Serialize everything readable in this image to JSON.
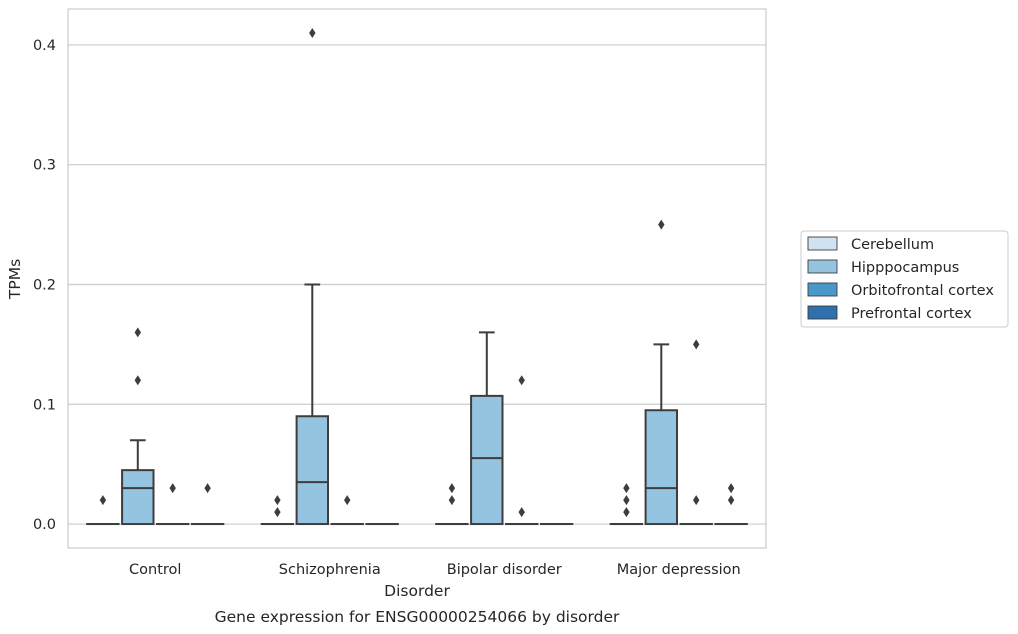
{
  "chart_data": {
    "type": "box",
    "xlabel": "Disorder",
    "ylabel": "TPMs",
    "caption": "Gene expression for ENSG00000254066 by disorder",
    "ylim": [
      -0.02,
      0.43
    ],
    "yticks": [
      "0.0",
      "0.1",
      "0.2",
      "0.3",
      "0.4"
    ],
    "ytick_values": [
      0.0,
      0.1,
      0.2,
      0.3,
      0.4
    ],
    "grid": "horizontal",
    "legend_position": "right",
    "categories": [
      "Control",
      "Schizophrenia",
      "Bipolar disorder",
      "Major depression"
    ],
    "series": [
      {
        "name": "Cerebellum",
        "color": "#d0e1f2",
        "boxes": [
          {
            "min": 0,
            "q1": 0,
            "median": 0,
            "q3": 0,
            "max": 0,
            "outliers": [
              0.02
            ]
          },
          {
            "min": 0,
            "q1": 0,
            "median": 0,
            "q3": 0,
            "max": 0,
            "outliers": [
              0.01,
              0.02
            ]
          },
          {
            "min": 0,
            "q1": 0,
            "median": 0,
            "q3": 0,
            "max": 0,
            "outliers": [
              0.02,
              0.03
            ]
          },
          {
            "min": 0,
            "q1": 0,
            "median": 0,
            "q3": 0,
            "max": 0,
            "outliers": [
              0.01,
              0.02,
              0.03
            ]
          }
        ]
      },
      {
        "name": "Hipppocampus",
        "color": "#94c4df",
        "boxes": [
          {
            "min": 0,
            "q1": 0,
            "median": 0.03,
            "q3": 0.045,
            "max": 0.07,
            "outliers": [
              0.12,
              0.16
            ]
          },
          {
            "min": 0,
            "q1": 0,
            "median": 0.035,
            "q3": 0.09,
            "max": 0.2,
            "outliers": [
              0.41
            ]
          },
          {
            "min": 0,
            "q1": 0,
            "median": 0.055,
            "q3": 0.107,
            "max": 0.16,
            "outliers": []
          },
          {
            "min": 0,
            "q1": 0,
            "median": 0.03,
            "q3": 0.095,
            "max": 0.15,
            "outliers": [
              0.25
            ]
          }
        ]
      },
      {
        "name": "Orbitofrontal cortex",
        "color": "#4a98c9",
        "boxes": [
          {
            "min": 0,
            "q1": 0,
            "median": 0,
            "q3": 0,
            "max": 0,
            "outliers": [
              0.03
            ]
          },
          {
            "min": 0,
            "q1": 0,
            "median": 0,
            "q3": 0,
            "max": 0,
            "outliers": [
              0.02
            ]
          },
          {
            "min": 0,
            "q1": 0,
            "median": 0,
            "q3": 0,
            "max": 0,
            "outliers": [
              0.12,
              0.01
            ]
          },
          {
            "min": 0,
            "q1": 0,
            "median": 0,
            "q3": 0,
            "max": 0,
            "outliers": [
              0.02,
              0.15
            ]
          }
        ]
      },
      {
        "name": "Prefrontal cortex",
        "color": "#2e6fad",
        "boxes": [
          {
            "min": 0,
            "q1": 0,
            "median": 0,
            "q3": 0,
            "max": 0,
            "outliers": [
              0.03
            ]
          },
          {
            "min": 0,
            "q1": 0,
            "median": 0,
            "q3": 0,
            "max": 0,
            "outliers": []
          },
          {
            "min": 0,
            "q1": 0,
            "median": 0,
            "q3": 0,
            "max": 0,
            "outliers": []
          },
          {
            "min": 0,
            "q1": 0,
            "median": 0,
            "q3": 0,
            "max": 0,
            "outliers": [
              0.02,
              0.03
            ]
          }
        ]
      }
    ]
  }
}
